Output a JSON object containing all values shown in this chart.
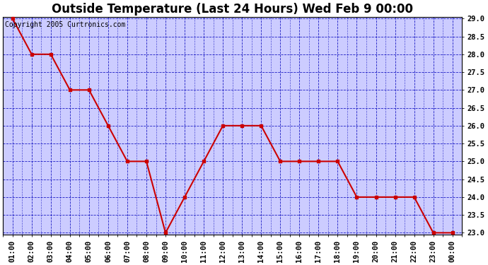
{
  "title": "Outside Temperature (Last 24 Hours) Wed Feb 9 00:00",
  "copyright": "Copyright 2005 Curtronics.com",
  "x_labels": [
    "01:00",
    "02:00",
    "03:00",
    "04:00",
    "05:00",
    "06:00",
    "07:00",
    "08:00",
    "09:00",
    "10:00",
    "11:00",
    "12:00",
    "13:00",
    "14:00",
    "15:00",
    "16:00",
    "17:00",
    "18:00",
    "19:00",
    "20:00",
    "21:00",
    "22:00",
    "23:00",
    "00:00"
  ],
  "y_values": [
    29.0,
    28.0,
    28.0,
    27.0,
    27.0,
    26.0,
    25.0,
    25.0,
    23.0,
    24.0,
    25.0,
    26.0,
    26.0,
    26.0,
    25.0,
    25.0,
    25.0,
    25.0,
    24.0,
    24.0,
    24.0,
    24.0,
    23.0,
    23.0
  ],
  "y_min": 23.0,
  "y_max": 29.0,
  "y_step": 0.5,
  "line_color": "#cc0000",
  "marker": "s",
  "marker_size": 3,
  "fig_bg_color": "#ffffff",
  "plot_bg_color": "#ccccff",
  "grid_color": "#0000bb",
  "title_fontsize": 12,
  "copyright_fontsize": 7,
  "tick_fontsize": 7.5,
  "fig_width": 6.9,
  "fig_height": 3.75,
  "dpi": 100
}
